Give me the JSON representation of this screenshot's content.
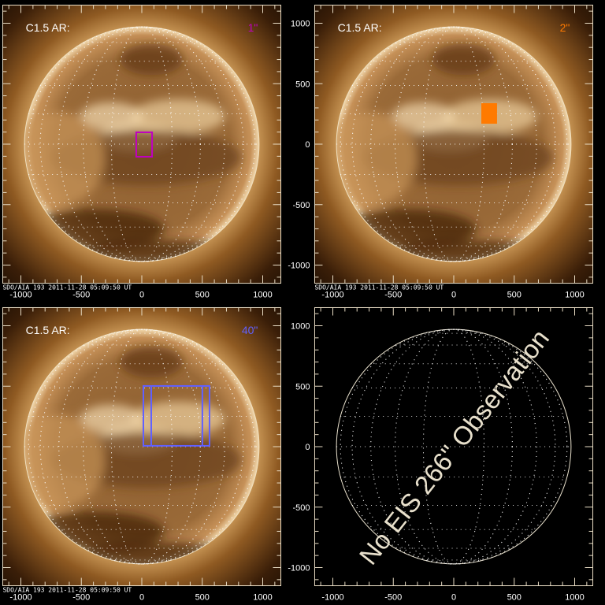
{
  "colors": {
    "background": "#000000",
    "axis": "#e8dcc4",
    "grid_dots": "#ffffff",
    "note_text": "#e8e0cc"
  },
  "axes": {
    "x_ticks": [
      "-1000",
      "-500",
      "0",
      "500",
      "1000"
    ],
    "y_ticks": [
      "1000",
      "500",
      "0",
      "-500",
      "-1000"
    ],
    "tick_values": [
      -1000,
      -500,
      0,
      500,
      1000
    ],
    "range_arcsec": [
      -1150,
      1150
    ]
  },
  "caption": "SDO/AIA 193   2011-11-28 05:09:50 UT",
  "panels": [
    {
      "id": "slit-1",
      "label": "C1.5 AR:",
      "slit": "1\"",
      "slit_color": "#c000c0",
      "image": "solar-disk-aia193",
      "raster": {
        "x": [
          -46,
          85
        ],
        "y": [
          -104,
          98
        ],
        "style": "outline"
      }
    },
    {
      "id": "slit-2",
      "label": "C1.5 AR:",
      "slit": "2\"",
      "slit_color": "#ff7a00",
      "image": "solar-disk-aia193",
      "raster": {
        "x": [
          228,
          358
        ],
        "y": [
          169,
          339
        ],
        "style": "filled"
      }
    },
    {
      "id": "slit-40",
      "label": "C1.5 AR:",
      "slit": "40\"",
      "slit_color": "#6060ff",
      "image": "solar-disk-aia193",
      "raster": {
        "x": [
          13,
          560
        ],
        "y": [
          7,
          502
        ],
        "inner_x": [
          78,
          501
        ],
        "style": "double-outline"
      }
    },
    {
      "id": "slit-266",
      "label": "",
      "slit": "",
      "image": "empty-grid",
      "note": "No EIS 266\" Observation"
    }
  ]
}
